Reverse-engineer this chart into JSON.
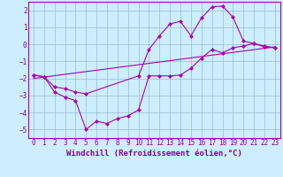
{
  "background_color": "#cceeff",
  "line_color": "#aa00aa",
  "grid_color": "#99bbcc",
  "xlabel": "Windchill (Refroidissement éolien,°C)",
  "xlim": [
    -0.5,
    23.5
  ],
  "ylim": [
    -5.5,
    2.5
  ],
  "yticks": [
    -5,
    -4,
    -3,
    -2,
    -1,
    0,
    1,
    2
  ],
  "xticks": [
    0,
    1,
    2,
    3,
    4,
    5,
    6,
    7,
    8,
    9,
    10,
    11,
    12,
    13,
    14,
    15,
    16,
    17,
    18,
    19,
    20,
    21,
    22,
    23
  ],
  "line1_x": [
    0,
    1,
    2,
    3,
    4,
    5,
    6,
    7,
    8,
    9,
    10,
    11,
    12,
    13,
    14,
    15,
    16,
    17,
    18,
    19,
    20,
    21,
    22,
    23
  ],
  "line1_y": [
    -1.8,
    -1.9,
    -2.8,
    -3.1,
    -3.3,
    -5.0,
    -4.5,
    -4.65,
    -4.35,
    -4.2,
    -3.85,
    -1.85,
    -1.85,
    -1.85,
    -1.8,
    -1.4,
    -0.8,
    -0.3,
    -0.5,
    -0.2,
    -0.1,
    0.05,
    -0.15,
    -0.2
  ],
  "line2_x": [
    0,
    1,
    2,
    3,
    4,
    5,
    10,
    11,
    12,
    13,
    14,
    15,
    16,
    17,
    18,
    19,
    20,
    21,
    22,
    23
  ],
  "line2_y": [
    -1.8,
    -1.9,
    -2.5,
    -2.6,
    -2.8,
    -2.9,
    -1.85,
    -0.3,
    0.5,
    1.2,
    1.35,
    0.5,
    1.55,
    2.2,
    2.25,
    1.6,
    0.2,
    0.05,
    -0.1,
    -0.2
  ],
  "line3_x": [
    0,
    23
  ],
  "line3_y": [
    -2.0,
    -0.15
  ],
  "marker": "D",
  "markersize": 2.5,
  "linewidth": 0.8,
  "xlabel_fontsize": 6.5,
  "tick_fontsize": 5.5,
  "tick_color": "#880088",
  "label_color": "#880088"
}
